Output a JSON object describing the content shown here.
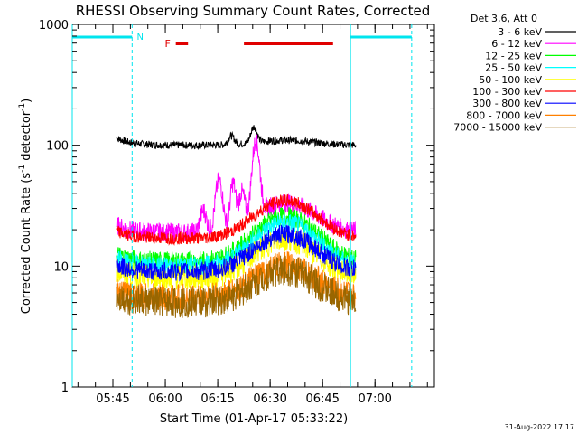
{
  "chart_data": {
    "type": "line",
    "title": "RHESSI Observing Summary Count Rates, Corrected",
    "xlabel": "Start Time (01-Apr-17 05:33:22)",
    "ylabel": {
      "prefix": "Corrected Count Rate (s",
      "exp1": "-1",
      "middle": " detector",
      "exp2": "-1",
      "suffix": ")"
    },
    "y_scale": "log",
    "ylim": [
      1,
      1000
    ],
    "xlim": [
      "05:33:22",
      "07:17:00"
    ],
    "x_ticks": [
      "05:45",
      "06:00",
      "06:15",
      "06:30",
      "06:45",
      "07:00"
    ],
    "y_ticks": [
      "1",
      "10",
      "100",
      "1000"
    ],
    "legend_header": "Det 3,6, Att 0",
    "legend_position": "right",
    "series": [
      {
        "name": "3 - 6 keV",
        "color": "#000000",
        "level": 100
      },
      {
        "name": "6 - 12 keV",
        "color": "#ff00ff",
        "level": 19
      },
      {
        "name": "12 - 25 keV",
        "color": "#00ff00",
        "level": 11
      },
      {
        "name": "25 - 50 keV",
        "color": "#00ffff",
        "level": 10
      },
      {
        "name": "50 - 100 keV",
        "color": "#ffff00",
        "level": 8
      },
      {
        "name": "100 - 300 keV",
        "color": "#ff0000",
        "level": 17
      },
      {
        "name": "300 - 800 keV",
        "color": "#0000ff",
        "level": 9
      },
      {
        "name": "800 - 7000 keV",
        "color": "#ff8000",
        "level": 5.5
      },
      {
        "name": "7000 - 15000 keV",
        "color": "#996600",
        "level": 5
      }
    ],
    "annotations": {
      "night_label": "N",
      "flare_label": "F",
      "night_intervals": [
        [
          "05:33:22",
          "05:50:30"
        ],
        [
          "06:53:00",
          "07:10:30"
        ]
      ],
      "flare_intervals": [
        [
          "06:03:00",
          "06:06:30"
        ],
        [
          "06:22:30",
          "06:48:00"
        ]
      ]
    },
    "data_window": [
      "05:46:00",
      "06:54:30"
    ]
  },
  "footer": {
    "date": "31-Aug-2022 17:17"
  }
}
